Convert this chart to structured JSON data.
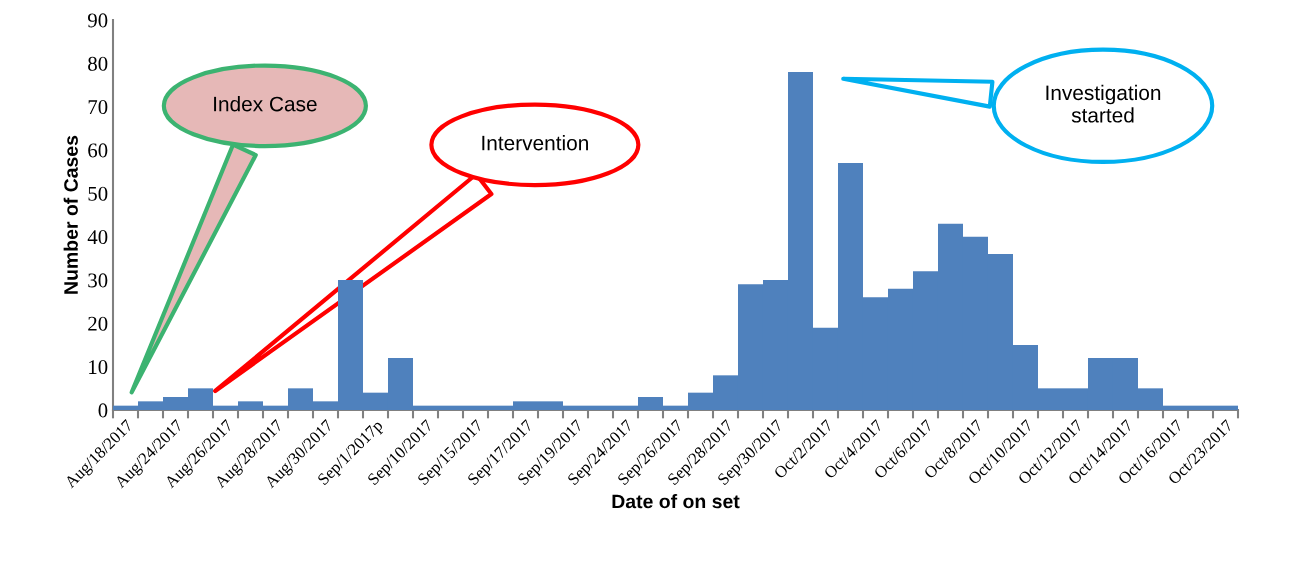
{
  "chart_data": {
    "type": "bar",
    "xlabel": "Date of on set",
    "ylabel": "Number of Cases",
    "categories": [
      "Aug/18/2017",
      null,
      "Aug/24/2017",
      null,
      "Aug/26/2017",
      null,
      "Aug/28/2017",
      null,
      "Aug/30/2017",
      null,
      "Sep/1/2017p",
      null,
      "Sep/10/2017",
      null,
      "Sep/15/2017",
      null,
      "Sep/17/2017",
      null,
      "Sep/19/2017",
      null,
      "Sep/24/2017",
      null,
      "Sep/26/2017",
      null,
      "Sep/28/2017",
      null,
      "Sep/30/2017",
      null,
      "Oct/2/2017",
      null,
      "Oct/4/2017",
      null,
      "Oct/6/2017",
      null,
      "Oct/8/2017",
      null,
      "Oct/10/2017",
      null,
      "Oct/12/2017",
      null,
      "Oct/14/2017",
      null,
      "Oct/16/2017",
      null,
      "Oct/23/2017"
    ],
    "values": [
      1,
      2,
      3,
      5,
      1,
      2,
      1,
      5,
      2,
      30,
      4,
      12,
      1,
      1,
      1,
      1,
      2,
      2,
      1,
      1,
      1,
      3,
      1,
      4,
      8,
      29,
      30,
      78,
      19,
      57,
      26,
      28,
      32,
      43,
      40,
      36,
      15,
      5,
      5,
      12,
      12,
      5,
      1,
      1,
      1
    ],
    "color": "#4f81bd",
    "ylim": [
      0,
      90
    ],
    "yticks": [
      0,
      10,
      20,
      30,
      40,
      50,
      60,
      70,
      80,
      90
    ],
    "grid": false,
    "legend": false,
    "annotations": [
      "Index Case",
      "Intervention",
      "Investigation\nstarted"
    ]
  }
}
